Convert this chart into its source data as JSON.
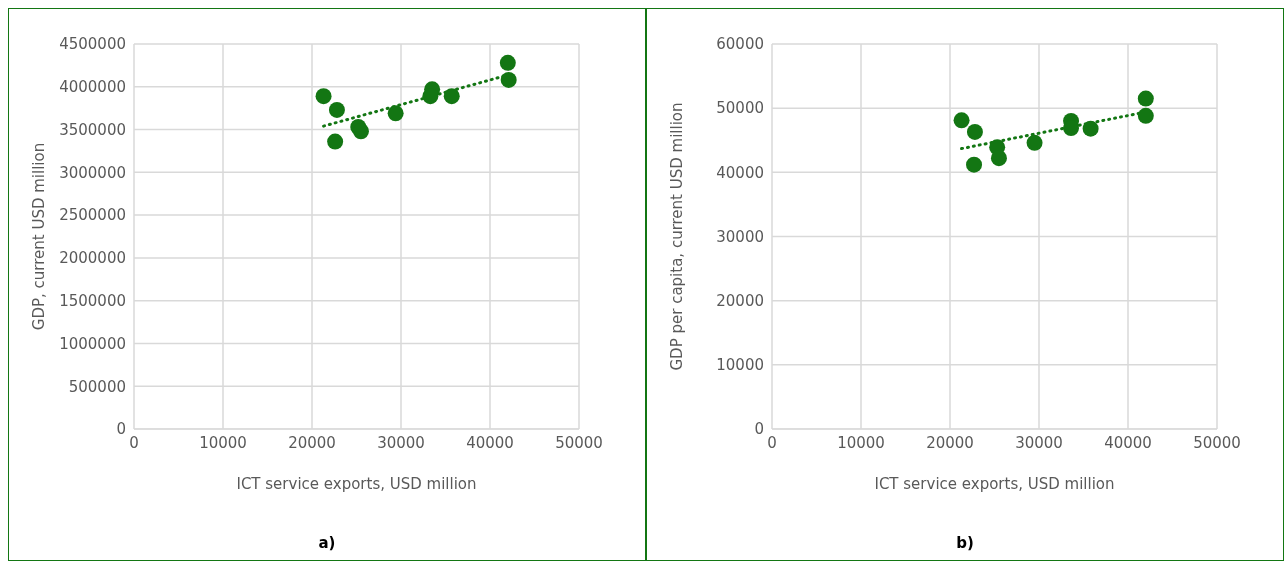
{
  "chart_data": [
    {
      "type": "scatter",
      "xlabel": "ICT service exports, USD million",
      "ylabel": "GDP, current USD million",
      "annotations": [
        "a)"
      ],
      "xlim": [
        0,
        50000
      ],
      "xticks": [
        0,
        10000,
        20000,
        30000,
        40000,
        50000
      ],
      "ylim": [
        0,
        4500000
      ],
      "yticks": [
        0,
        500000,
        1000000,
        1500000,
        2000000,
        2500000,
        3000000,
        3500000,
        4000000,
        4500000
      ],
      "grid": true,
      "series": [
        {
          "color": "#137613",
          "marker": "circle",
          "x": [
            21300,
            22800,
            22600,
            25200,
            25500,
            29400,
            33500,
            33300,
            35700,
            42000,
            42100
          ],
          "values": [
            3890000,
            3730000,
            3360000,
            3530000,
            3480000,
            3690000,
            3970000,
            3890000,
            3890000,
            4280000,
            4080000
          ]
        },
        {
          "type": "line",
          "color": "#137613",
          "marker": "none",
          "line_style": "dotted",
          "x": [
            21300,
            42100
          ],
          "values": [
            3540000,
            4140000
          ]
        }
      ]
    },
    {
      "type": "scatter",
      "xlabel": "ICT service exports, USD million",
      "ylabel": "GDP per capita, current USD million",
      "annotations": [
        "b)"
      ],
      "xlim": [
        0,
        50000
      ],
      "xticks": [
        0,
        10000,
        20000,
        30000,
        40000,
        50000
      ],
      "ylim": [
        0,
        60000
      ],
      "yticks": [
        0,
        10000,
        20000,
        30000,
        40000,
        50000,
        60000
      ],
      "grid": true,
      "series": [
        {
          "color": "#137613",
          "marker": "circle",
          "x": [
            21300,
            22800,
            22700,
            25300,
            25500,
            29500,
            33600,
            33600,
            35800,
            42000,
            42000
          ],
          "values": [
            48100,
            46300,
            41200,
            43900,
            42200,
            44600,
            48000,
            46900,
            46800,
            51500,
            48800
          ]
        },
        {
          "type": "line",
          "color": "#137613",
          "marker": "none",
          "line_style": "dotted",
          "x": [
            21300,
            42000
          ],
          "values": [
            43700,
            49400
          ]
        }
      ]
    }
  ]
}
